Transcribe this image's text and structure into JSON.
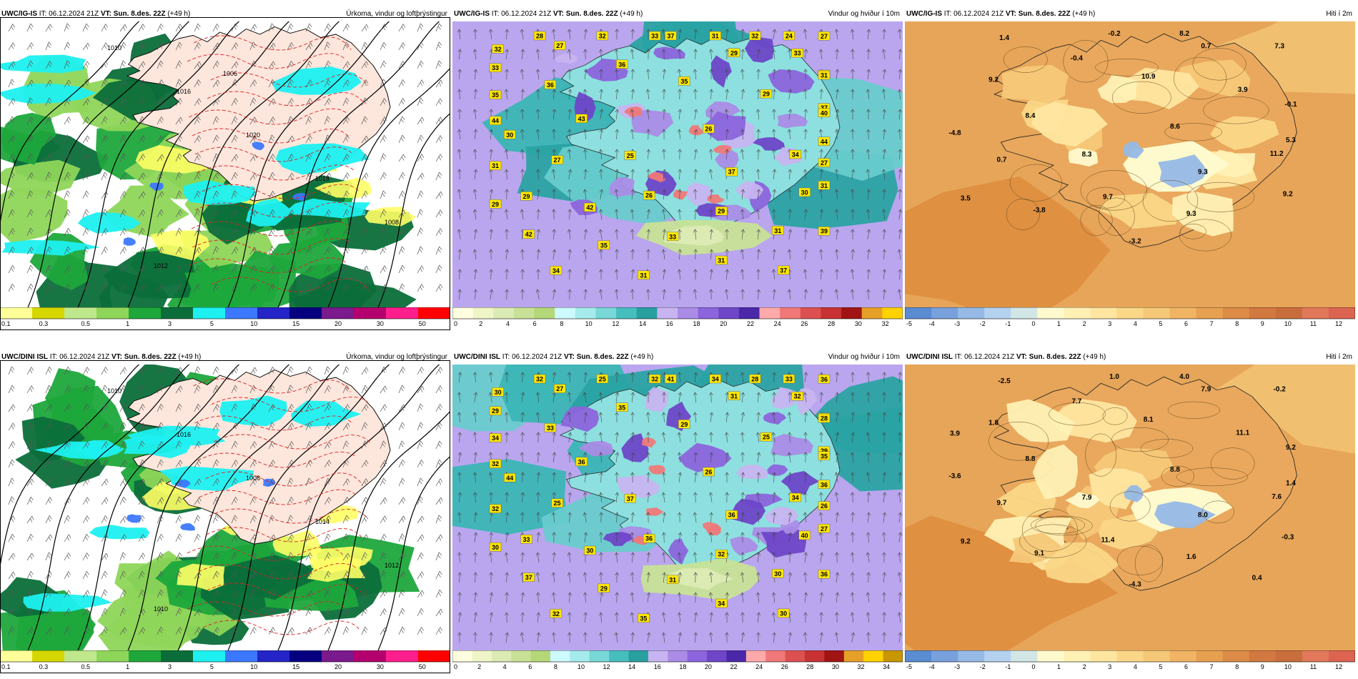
{
  "panels": [
    {
      "model": "UWC/IG-IS",
      "it_label": "IT:",
      "it": "06.12.2024 21Z",
      "vt_label": "VT:",
      "vt": "Sun. 8.des. 22Z",
      "lead": "(+49 h)",
      "title": "Úrkoma, vindur og loftþrýstingur",
      "type": "precip",
      "framed": true,
      "colorbar": {
        "colors": [
          "#ffff99",
          "#d6d600",
          "#bfe88c",
          "#8ed65a",
          "#1ea83c",
          "#0b6e3a",
          "#1ef0f0",
          "#3c78ff",
          "#2424c8",
          "#060080",
          "#7a1a8c",
          "#b4006e",
          "#ff1e8c",
          "#ff0000"
        ],
        "ticks": [
          "0.1",
          "0.3",
          "0.5",
          "1",
          "3",
          "5",
          "10",
          "15",
          "20",
          "30",
          "50"
        ]
      },
      "isobars": [
        "1010",
        "1016",
        "1020",
        "1018",
        "1008",
        "1012",
        "1006"
      ],
      "values": []
    },
    {
      "model": "UWC/IG-IS",
      "it_label": "IT:",
      "it": "06.12.2024 21Z",
      "vt_label": "VT:",
      "vt": "Sun. 8.des. 22Z",
      "lead": "(+49 h)",
      "title": "Vindur og hviður í 10m",
      "type": "wind",
      "framed": false,
      "colorbar": {
        "colors": [
          "#ffffe0",
          "#f0f5c8",
          "#dcebb4",
          "#c8e196",
          "#b4d778",
          "#cdfaff",
          "#a5ebeb",
          "#78d7d7",
          "#46bebe",
          "#28a0a0",
          "#c8b4f0",
          "#aa8ce6",
          "#8c64dc",
          "#6e46c8",
          "#4b28aa",
          "#ffaaaa",
          "#f07878",
          "#dc5050",
          "#c83232",
          "#a01414",
          "#e6a028",
          "#ffd200"
        ],
        "ticks": [
          "0",
          "2",
          "4",
          "6",
          "8",
          "10",
          "12",
          "14",
          "16",
          "18",
          "20",
          "22",
          "24",
          "26",
          "28",
          "30",
          "32"
        ]
      },
      "values": [
        "26",
        "25",
        "35",
        "37",
        "43",
        "29",
        "26",
        "36",
        "34",
        "27",
        "29",
        "29",
        "36",
        "37",
        "42",
        "33",
        "30",
        "30",
        "33",
        "33",
        "27",
        "44",
        "29",
        "31",
        "31",
        "35",
        "26",
        "35",
        "32",
        "31",
        "31",
        "24",
        "31",
        "32",
        "40",
        "42",
        "37",
        "39",
        "44",
        "27",
        "31",
        "28",
        "27",
        "29",
        "32",
        "37",
        "33",
        "31",
        "34"
      ]
    },
    {
      "model": "UWC/IG-IS",
      "it_label": "IT:",
      "it": "06.12.2024 21Z",
      "vt_label": "VT:",
      "vt": "Sun. 8.des. 22Z",
      "lead": "(+49 h)",
      "title": "Hiti í 2m",
      "type": "temp",
      "framed": false,
      "colorbar": {
        "colors": [
          "#5a8cd2",
          "#78a0dc",
          "#96b9e6",
          "#b4d2f0",
          "#d2e6e6",
          "#fffacd",
          "#fff0b4",
          "#ffe6a0",
          "#fad787",
          "#f5c878",
          "#f0b464",
          "#e6a050",
          "#dc8c46",
          "#d27841",
          "#c86e3c",
          "#e1785a",
          "#dc6450"
        ],
        "ticks": [
          "-5",
          "-4",
          "-3",
          "-2",
          "-1",
          "0",
          "1",
          "2",
          "3",
          "4",
          "5",
          "6",
          "7",
          "8",
          "9",
          "10",
          "11",
          "12"
        ]
      },
      "values": [
        "8.6",
        "8.3",
        "10.9",
        "9.3",
        "8.4",
        "3.9",
        "9.7",
        "-0.4",
        "11.2",
        "0.7",
        "0.7",
        "9.3",
        "9.2",
        "-0.1",
        "-3.8",
        "-0.2",
        "9.2",
        "-4.8",
        "7.3",
        "-3.2",
        "1.4",
        "5.3",
        "3.5",
        "8.2"
      ]
    },
    {
      "model": "UWC/DINI ISL",
      "it_label": "IT:",
      "it": "06.12.2024 21Z",
      "vt_label": "VT:",
      "vt": "Sun. 8.des. 22Z",
      "lead": "(+49 h)",
      "title": "Úrkoma, vindur og loftþrýstingur",
      "type": "precip",
      "framed": true,
      "colorbar": {
        "colors": [
          "#ffff99",
          "#d6d600",
          "#bfe88c",
          "#8ed65a",
          "#1ea83c",
          "#0b6e3a",
          "#1ef0f0",
          "#3c78ff",
          "#2424c8",
          "#060080",
          "#7a1a8c",
          "#b4006e",
          "#ff1e8c",
          "#ff0000"
        ],
        "ticks": [
          "0.1",
          "0.3",
          "0.5",
          "1",
          "3",
          "5",
          "10",
          "15",
          "20",
          "30",
          "50"
        ]
      },
      "isobars": [
        "1010",
        "1016",
        "1008",
        "1014",
        "1012",
        "1010"
      ],
      "values": []
    },
    {
      "model": "UWC/DINI ISL",
      "it_label": "IT:",
      "it": "06.12.2024 21Z",
      "vt_label": "VT:",
      "vt": "Sun. 8.des. 22Z",
      "lead": "(+49 h)",
      "title": "Vindur og hviður í 10m",
      "type": "wind",
      "framed": false,
      "colorbar": {
        "colors": [
          "#ffffe0",
          "#f0f5c8",
          "#dcebb4",
          "#c8e196",
          "#b4d778",
          "#cdfaff",
          "#a5ebeb",
          "#78d7d7",
          "#46bebe",
          "#28a0a0",
          "#c8b4f0",
          "#aa8ce6",
          "#8c64dc",
          "#6e46c8",
          "#4b28aa",
          "#ffaaaa",
          "#f07878",
          "#dc5050",
          "#c83232",
          "#a01414",
          "#e6a028",
          "#ffd200",
          "#c89600"
        ],
        "ticks": [
          "0",
          "2",
          "4",
          "6",
          "8",
          "10",
          "12",
          "14",
          "16",
          "18",
          "20",
          "22",
          "24",
          "26",
          "28",
          "30",
          "32",
          "34"
        ]
      },
      "values": [
        "26",
        "37",
        "29",
        "36",
        "36",
        "25",
        "36",
        "35",
        "34",
        "25",
        "31",
        "32",
        "33",
        "29",
        "30",
        "32",
        "40",
        "44",
        "32",
        "31",
        "27",
        "36",
        "33",
        "34",
        "30",
        "34",
        "29",
        "29",
        "25",
        "27",
        "32",
        "33",
        "34",
        "30",
        "35",
        "37",
        "41",
        "36",
        "32",
        "36",
        "35",
        "32",
        "26",
        "30",
        "28",
        "30",
        "29",
        "28",
        "32"
      ]
    },
    {
      "model": "UWC/DINI ISL",
      "it_label": "IT:",
      "it": "06.12.2024 21Z",
      "vt_label": "VT:",
      "vt": "Sun. 8.des. 22Z",
      "lead": "(+49 h)",
      "title": "Hiti í 2m",
      "type": "temp",
      "framed": false,
      "colorbar": {
        "colors": [
          "#5a8cd2",
          "#78a0dc",
          "#96b9e6",
          "#b4d2f0",
          "#d2e6e6",
          "#fffacd",
          "#fff0b4",
          "#ffe6a0",
          "#fad787",
          "#f5c878",
          "#f0b464",
          "#e6a050",
          "#dc8c46",
          "#d27841",
          "#c86e3c",
          "#e1785a",
          "#dc6450"
        ],
        "ticks": [
          "-5",
          "-4",
          "-3",
          "-2",
          "-1",
          "0",
          "1",
          "2",
          "3",
          "4",
          "5",
          "6",
          "7",
          "8",
          "9",
          "10",
          "11",
          "12"
        ]
      },
      "values": [
        "8.8",
        "7.9",
        "8.1",
        "8.0",
        "8.8",
        "11.1",
        "11.4",
        "7.7",
        "7.6",
        "9.7",
        "7.9",
        "1.6",
        "1.8",
        "9.2",
        "9.1",
        "1.0",
        "-0.3",
        "-3.6",
        "-0.2",
        "-4.3",
        "-2.5",
        "1.4",
        "9.2",
        "4.0",
        "0.4",
        "3.9"
      ]
    }
  ]
}
